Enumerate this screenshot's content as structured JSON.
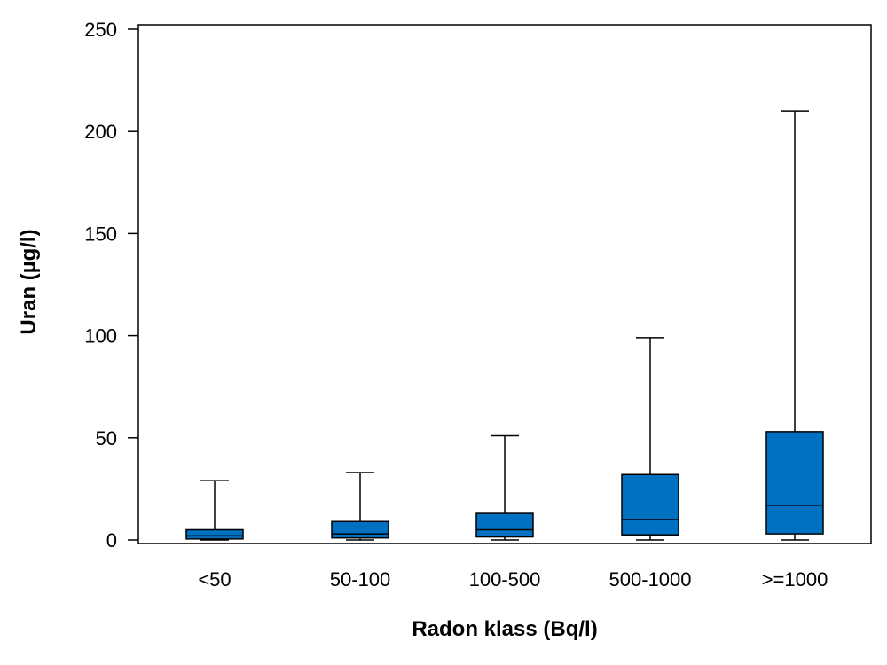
{
  "chart_data": {
    "type": "boxplot",
    "title": "",
    "xlabel": "Radon klass (Bq/l)",
    "ylabel": "Uran (µg/l)",
    "ylim": [
      0,
      250
    ],
    "yticks": [
      0,
      50,
      100,
      150,
      200,
      250
    ],
    "categories": [
      "<50",
      "50-100",
      "100-500",
      "500-1000",
      ">=1000"
    ],
    "boxes": [
      {
        "category": "<50",
        "min": 0,
        "q1": 0.5,
        "median": 2,
        "q3": 5,
        "max": 29
      },
      {
        "category": "50-100",
        "min": 0,
        "q1": 1,
        "median": 3,
        "q3": 9,
        "max": 33
      },
      {
        "category": "100-500",
        "min": 0,
        "q1": 1.5,
        "median": 5,
        "q3": 13,
        "max": 51
      },
      {
        "category": "500-1000",
        "min": 0,
        "q1": 2.5,
        "median": 10,
        "q3": 32,
        "max": 99
      },
      {
        "category": ">=1000",
        "min": 0,
        "q1": 3,
        "median": 17,
        "q3": 53,
        "max": 210
      }
    ],
    "box_color": "#0070C0",
    "line_color": "#000000",
    "grid": false,
    "legend": "none"
  }
}
